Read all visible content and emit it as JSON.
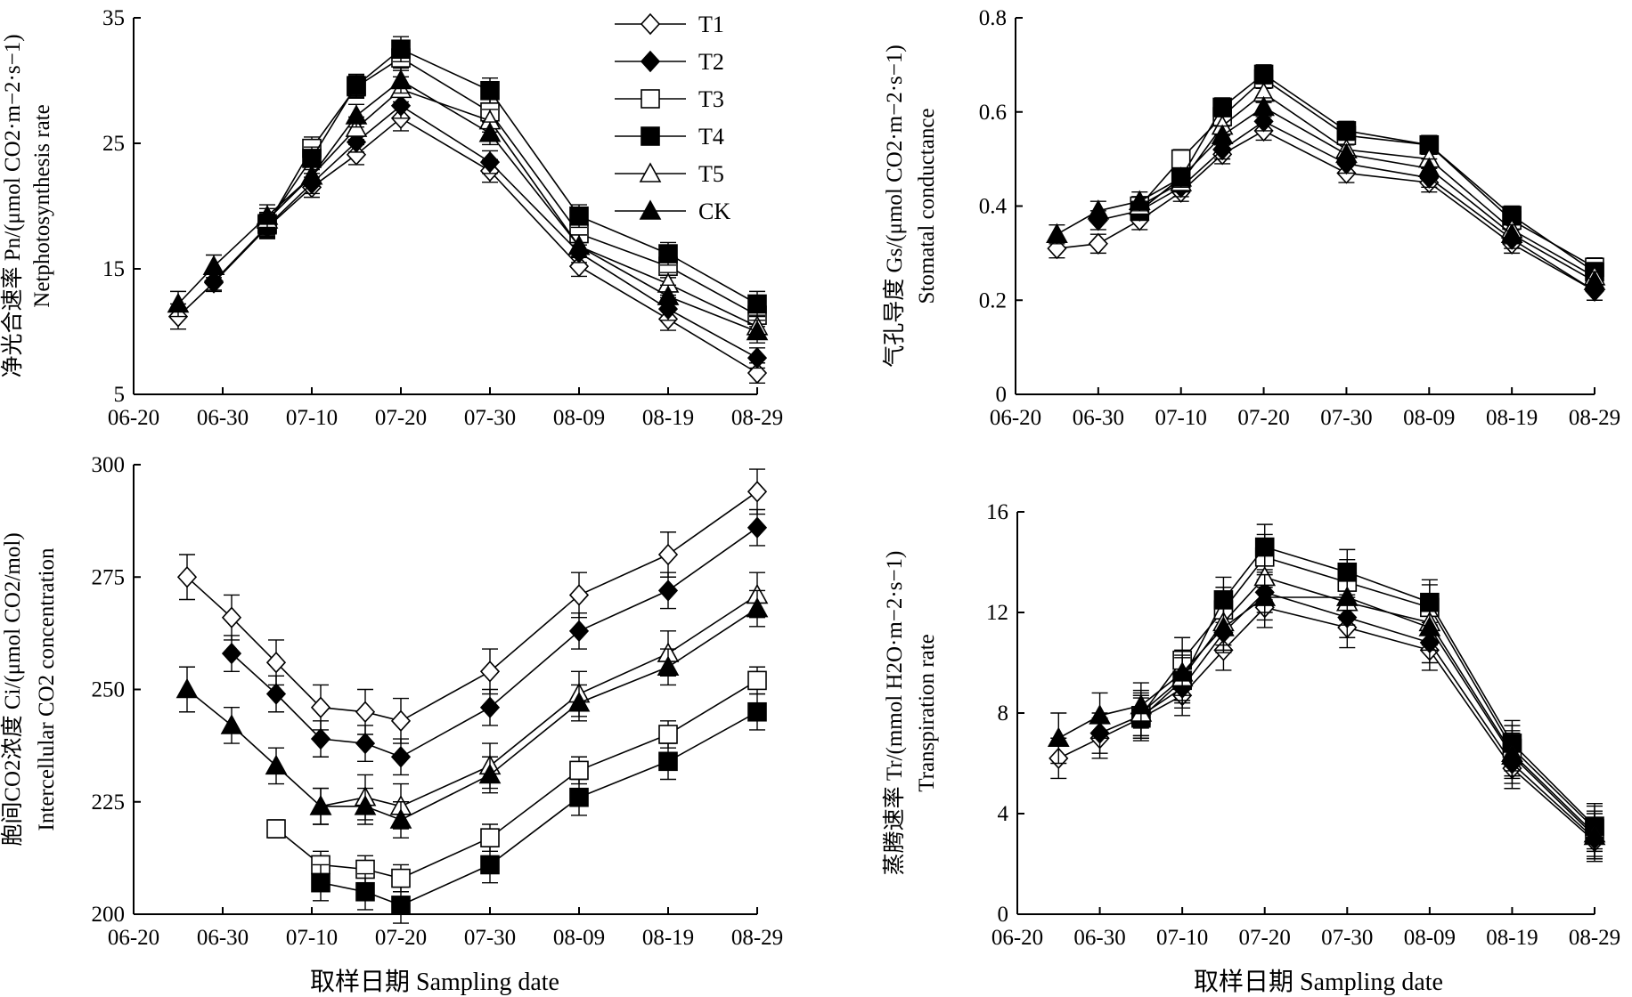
{
  "figure": {
    "xlabel": "取样日期 Sampling date",
    "legend": [
      "T1",
      "T2",
      "T3",
      "T4",
      "T5",
      "CK"
    ]
  },
  "styles": {
    "T1": {
      "marker": "diamond",
      "fill": "#ffffff"
    },
    "T2": {
      "marker": "diamond",
      "fill": "#000000"
    },
    "T3": {
      "marker": "square",
      "fill": "#ffffff"
    },
    "T4": {
      "marker": "square",
      "fill": "#000000"
    },
    "T5": {
      "marker": "triangle",
      "fill": "#ffffff"
    },
    "CK": {
      "marker": "triangle",
      "fill": "#000000"
    }
  },
  "chart_data": [
    {
      "type": "line",
      "ylabel_cn": "净光合速率 Pn/(μmol CO2·m−2·s−1)",
      "ylabel_en": "Netphotosynthesis rate",
      "x_ticks": [
        "06-20",
        "06-30",
        "07-10",
        "07-20",
        "07-30",
        "08-09",
        "08-19",
        "08-29"
      ],
      "y_ticks": [
        5,
        15,
        25,
        35
      ],
      "ylim": [
        5,
        35
      ],
      "legend": "top-center",
      "x": [
        "06-25",
        "06-29",
        "07-05",
        "07-10",
        "07-15",
        "07-20",
        "07-30",
        "08-09",
        "08-19",
        "08-29"
      ],
      "series": [
        {
          "name": "T1",
          "values": [
            11.2,
            13.9,
            18.3,
            21.5,
            24.1,
            27.0,
            22.8,
            15.2,
            11.0,
            6.7
          ],
          "err": [
            1.0,
            0.7,
            0.9,
            0.8,
            0.8,
            1.0,
            0.9,
            0.8,
            0.9,
            0.8
          ]
        },
        {
          "name": "T2",
          "values": [
            null,
            14.0,
            18.4,
            21.8,
            25.1,
            28.0,
            23.5,
            16.3,
            11.8,
            7.9
          ],
          "err": [
            null,
            0.7,
            0.9,
            0.8,
            0.8,
            1.0,
            0.9,
            0.8,
            0.9,
            0.8
          ]
        },
        {
          "name": "T3",
          "values": [
            null,
            null,
            18.5,
            24.6,
            29.5,
            31.8,
            27.5,
            17.8,
            15.2,
            11.3
          ],
          "err": [
            null,
            null,
            0.9,
            0.9,
            0.9,
            1.0,
            1.0,
            0.9,
            0.9,
            0.9
          ]
        },
        {
          "name": "T4",
          "values": [
            null,
            null,
            18.6,
            23.8,
            29.6,
            32.5,
            29.2,
            19.2,
            16.2,
            12.2
          ],
          "err": [
            null,
            null,
            0.9,
            0.9,
            0.9,
            1.0,
            1.0,
            0.9,
            0.9,
            1.0
          ]
        },
        {
          "name": "T5",
          "values": [
            null,
            null,
            18.9,
            22.4,
            26.2,
            29.3,
            26.8,
            16.8,
            13.8,
            10.4
          ],
          "err": [
            null,
            null,
            0.9,
            0.8,
            0.9,
            1.0,
            0.9,
            0.9,
            0.9,
            0.9
          ]
        },
        {
          "name": "CK",
          "values": [
            12.2,
            15.2,
            19.2,
            22.4,
            27.2,
            30.0,
            25.8,
            16.8,
            12.8,
            10.0
          ],
          "err": [
            1.0,
            0.9,
            0.9,
            0.8,
            0.9,
            1.0,
            0.9,
            0.9,
            0.9,
            0.9
          ]
        }
      ]
    },
    {
      "type": "line",
      "ylabel_cn": "气孔导度 Gs/(μmol CO2·m−2·s−1)",
      "ylabel_en": "Stomatal conductance",
      "x_ticks": [
        "06-20",
        "06-30",
        "07-10",
        "07-20",
        "07-30",
        "08-09",
        "08-19",
        "08-29"
      ],
      "y_ticks": [
        0,
        0.2,
        0.4,
        0.6,
        0.8
      ],
      "ylim": [
        0,
        0.8
      ],
      "x": [
        "06-25",
        "06-30",
        "07-05",
        "07-10",
        "07-15",
        "07-20",
        "07-30",
        "08-09",
        "08-19",
        "08-29"
      ],
      "series": [
        {
          "name": "T1",
          "values": [
            0.31,
            0.32,
            0.37,
            0.43,
            0.51,
            0.56,
            0.47,
            0.45,
            0.32,
            0.22
          ],
          "err": [
            0.02,
            0.02,
            0.02,
            0.02,
            0.02,
            0.02,
            0.02,
            0.02,
            0.02,
            0.02
          ]
        },
        {
          "name": "T2",
          "values": [
            null,
            0.37,
            0.39,
            0.44,
            0.52,
            0.58,
            0.49,
            0.46,
            0.33,
            0.22
          ],
          "err": [
            null,
            0.02,
            0.02,
            0.02,
            0.02,
            0.02,
            0.02,
            0.02,
            0.02,
            0.02
          ]
        },
        {
          "name": "T3",
          "values": [
            null,
            null,
            0.4,
            0.5,
            0.59,
            0.67,
            0.55,
            0.53,
            0.37,
            0.27
          ],
          "err": [
            null,
            null,
            0.02,
            0.02,
            0.02,
            0.02,
            0.02,
            0.02,
            0.02,
            0.02
          ]
        },
        {
          "name": "T4",
          "values": [
            null,
            null,
            0.39,
            0.46,
            0.61,
            0.68,
            0.56,
            0.53,
            0.38,
            0.26
          ],
          "err": [
            null,
            null,
            0.02,
            0.02,
            0.02,
            0.02,
            0.02,
            0.02,
            0.02,
            0.02
          ]
        },
        {
          "name": "T5",
          "values": [
            null,
            null,
            0.4,
            0.45,
            0.57,
            0.64,
            0.52,
            0.5,
            0.35,
            0.25
          ],
          "err": [
            null,
            null,
            0.02,
            0.02,
            0.02,
            0.02,
            0.02,
            0.02,
            0.02,
            0.02
          ]
        },
        {
          "name": "CK",
          "values": [
            0.34,
            0.39,
            0.41,
            0.46,
            0.55,
            0.61,
            0.51,
            0.48,
            0.34,
            0.24
          ],
          "err": [
            0.02,
            0.02,
            0.02,
            0.02,
            0.02,
            0.02,
            0.02,
            0.02,
            0.02,
            0.02
          ]
        }
      ]
    },
    {
      "type": "line",
      "ylabel_cn": "胞间CO2浓度 Ci/(μmol CO2/mol)",
      "ylabel_en": "Intercellular CO2 concentration",
      "x_ticks": [
        "06-20",
        "06-30",
        "07-10",
        "07-20",
        "07-30",
        "08-09",
        "08-19",
        "08-29"
      ],
      "y_ticks": [
        200,
        225,
        250,
        275,
        300
      ],
      "ylim": [
        200,
        300
      ],
      "x": [
        "06-26",
        "07-01",
        "07-06",
        "07-11",
        "07-16",
        "07-20",
        "07-30",
        "08-09",
        "08-19",
        "08-29"
      ],
      "series": [
        {
          "name": "T1",
          "values": [
            275,
            266,
            256,
            246,
            245,
            243,
            254,
            271,
            280,
            294
          ],
          "err": [
            5,
            5,
            5,
            5,
            5,
            5,
            5,
            5,
            5,
            5
          ]
        },
        {
          "name": "T2",
          "values": [
            null,
            258,
            249,
            239,
            238,
            235,
            246,
            263,
            272,
            286
          ],
          "err": [
            null,
            4,
            4,
            4,
            4,
            4,
            4,
            4,
            4,
            4
          ]
        },
        {
          "name": "T3",
          "values": [
            null,
            null,
            219,
            211,
            210,
            208,
            217,
            232,
            240,
            252
          ],
          "err": [
            null,
            null,
            2,
            3,
            3,
            3,
            3,
            3,
            3,
            3
          ]
        },
        {
          "name": "T4",
          "values": [
            null,
            null,
            null,
            207,
            205,
            202,
            211,
            226,
            234,
            245
          ],
          "err": [
            null,
            null,
            null,
            4,
            4,
            4,
            4,
            4,
            4,
            4
          ]
        },
        {
          "name": "T5",
          "values": [
            null,
            null,
            null,
            224,
            226,
            224,
            233,
            249,
            258,
            271
          ],
          "err": [
            null,
            null,
            null,
            4,
            5,
            5,
            5,
            5,
            5,
            5
          ]
        },
        {
          "name": "CK",
          "values": [
            250,
            242,
            233,
            224,
            224,
            221,
            231,
            247,
            255,
            268
          ],
          "err": [
            5,
            4,
            4,
            4,
            4,
            4,
            4,
            4,
            4,
            4
          ]
        }
      ]
    },
    {
      "type": "line",
      "ylabel_cn": "蒸腾速率 Tr/(mmol H2O·m−2·s−1)",
      "ylabel_en": "Transpiration rate",
      "x_ticks": [
        "06-20",
        "06-30",
        "07-10",
        "07-20",
        "07-30",
        "08-09",
        "08-19",
        "08-29"
      ],
      "y_ticks": [
        0,
        4,
        8,
        12,
        16
      ],
      "ylim": [
        0,
        16
      ],
      "x": [
        "06-25",
        "06-30",
        "07-05",
        "07-10",
        "07-15",
        "07-20",
        "07-30",
        "08-09",
        "08-19",
        "08-29"
      ],
      "series": [
        {
          "name": "T1",
          "values": [
            6.2,
            7.0,
            7.8,
            8.7,
            10.5,
            12.2,
            11.4,
            10.5,
            5.8,
            2.9
          ],
          "err": [
            0.8,
            0.8,
            0.8,
            0.8,
            0.8,
            0.8,
            0.8,
            0.8,
            0.8,
            0.8
          ]
        },
        {
          "name": "T2",
          "values": [
            null,
            7.2,
            7.9,
            9.0,
            11.2,
            12.8,
            11.8,
            10.8,
            6.0,
            3.0
          ],
          "err": [
            null,
            0.8,
            0.8,
            0.8,
            0.8,
            0.8,
            0.8,
            0.8,
            0.8,
            0.8
          ]
        },
        {
          "name": "T3",
          "values": [
            null,
            null,
            7.9,
            10.1,
            12.1,
            14.2,
            13.2,
            12.2,
            6.6,
            3.4
          ],
          "err": [
            null,
            null,
            0.9,
            0.9,
            0.9,
            0.9,
            0.9,
            0.9,
            0.9,
            0.9
          ]
        },
        {
          "name": "T4",
          "values": [
            null,
            null,
            7.8,
            9.3,
            12.5,
            14.6,
            13.6,
            12.4,
            6.8,
            3.5
          ],
          "err": [
            null,
            null,
            0.9,
            0.9,
            0.9,
            0.9,
            0.9,
            0.9,
            0.9,
            0.9
          ]
        },
        {
          "name": "T5",
          "values": [
            null,
            null,
            8.0,
            9.4,
            11.6,
            13.4,
            12.4,
            11.6,
            6.4,
            3.2
          ],
          "err": [
            null,
            null,
            0.9,
            0.9,
            0.9,
            0.9,
            0.9,
            0.9,
            0.9,
            0.9
          ]
        },
        {
          "name": "CK",
          "values": [
            7.0,
            7.9,
            8.3,
            9.6,
            11.4,
            12.6,
            12.6,
            11.4,
            6.3,
            3.1
          ],
          "err": [
            1.0,
            0.9,
            0.9,
            0.9,
            0.9,
            0.9,
            0.9,
            0.9,
            0.9,
            0.9
          ]
        }
      ]
    }
  ]
}
